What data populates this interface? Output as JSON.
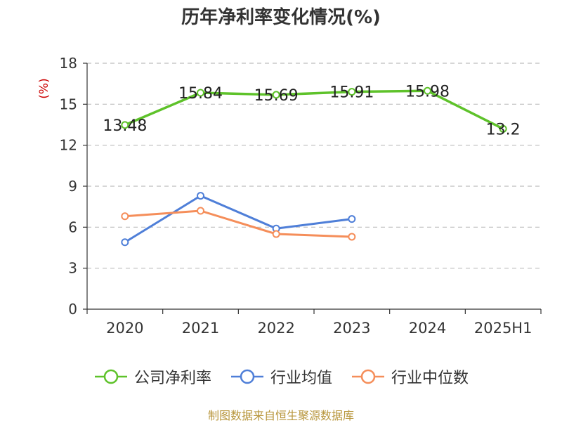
{
  "title": "历年净利率变化情况(%)",
  "footer": "制图数据来自恒生聚源数据库",
  "colors": {
    "company": "#5ec22a",
    "industry_avg": "#4f7fd8",
    "industry_median": "#f58e5a",
    "ylabel": "#cc0000",
    "grid": "#bdbdbd",
    "axis": "#333333",
    "footer": "#b8963c"
  },
  "chart_data": {
    "type": "line",
    "title": "历年净利率变化情况(%)",
    "xlabel": "",
    "ylabel": "(%)",
    "ylim": [
      0,
      18
    ],
    "yticks": [
      "0",
      "3",
      "6",
      "9",
      "12",
      "15",
      "18"
    ],
    "categories": [
      "2020",
      "2021",
      "2022",
      "2023",
      "2024",
      "2025H1"
    ],
    "grid": true,
    "legend_position": "bottom",
    "series": [
      {
        "name": "公司净利率",
        "values": [
          13.48,
          15.84,
          15.69,
          15.91,
          15.98,
          13.2
        ],
        "labels": [
          "13.48",
          "15.84",
          "15.69",
          "15.91",
          "15.98",
          "13.2"
        ]
      },
      {
        "name": "行业均值",
        "values": [
          4.9,
          8.3,
          5.9,
          6.6,
          null,
          null
        ]
      },
      {
        "name": "行业中位数",
        "values": [
          6.8,
          7.2,
          5.5,
          5.3,
          null,
          null
        ]
      }
    ]
  }
}
